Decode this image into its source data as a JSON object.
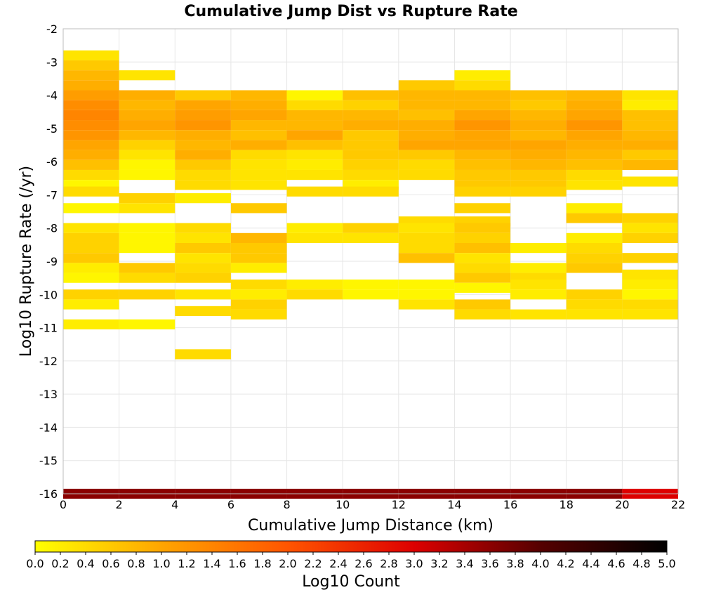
{
  "chart_data": {
    "type": "heatmap",
    "title": "Cumulative Jump Dist vs Rupture Rate",
    "xlabel": "Cumulative Jump Distance (km)",
    "ylabel": "Log10 Rupture Rate (/yr)",
    "xlim": [
      0,
      22
    ],
    "ylim": [
      -16,
      -2
    ],
    "x_ticks": [
      "0",
      "2",
      "4",
      "6",
      "8",
      "10",
      "12",
      "14",
      "16",
      "18",
      "20",
      "22"
    ],
    "y_ticks": [
      "-16",
      "-15",
      "-14",
      "-13",
      "-12",
      "-11",
      "-10",
      "-9",
      "-8",
      "-7",
      "-6",
      "-5",
      "-4",
      "-3",
      "-2"
    ],
    "grid": true,
    "x_bin_width": 2,
    "y_bin_height": 0.3,
    "colorbar": {
      "label": "Log10 Count",
      "min": 0.0,
      "max": 5.0,
      "ticks": [
        "0.0",
        "0.2",
        "0.4",
        "0.6",
        "0.8",
        "1.0",
        "1.2",
        "1.4",
        "1.6",
        "1.8",
        "2.0",
        "2.2",
        "2.4",
        "2.6",
        "2.8",
        "3.0",
        "3.2",
        "3.4",
        "3.6",
        "3.8",
        "4.0",
        "4.2",
        "4.4",
        "4.6",
        "4.8",
        "5.0"
      ],
      "colors": [
        "#ffff00",
        "#ffa500",
        "#ff5500",
        "#dd0000",
        "#550000",
        "#000000"
      ]
    },
    "columns": [
      {
        "x": 0,
        "cells": [
          [
            -2.8,
            0.3
          ],
          [
            -3.1,
            0.6
          ],
          [
            -3.4,
            0.8
          ],
          [
            -3.7,
            0.9
          ],
          [
            -4.0,
            1.1
          ],
          [
            -4.3,
            1.3
          ],
          [
            -4.6,
            1.4
          ],
          [
            -4.9,
            1.3
          ],
          [
            -5.2,
            1.2
          ],
          [
            -5.5,
            1.0
          ],
          [
            -5.8,
            0.9
          ],
          [
            -6.1,
            0.7
          ],
          [
            -6.4,
            0.4
          ],
          [
            -6.7,
            0.1
          ],
          [
            -6.9,
            0.4
          ],
          [
            -7.4,
            0.1
          ],
          [
            -8.0,
            0.3
          ],
          [
            -8.3,
            0.5
          ],
          [
            -8.6,
            0.5
          ],
          [
            -8.9,
            0.6
          ],
          [
            -9.2,
            0.2
          ],
          [
            -9.5,
            0.1
          ],
          [
            -10.0,
            0.5
          ],
          [
            -10.3,
            0.2
          ],
          [
            -10.9,
            0.2
          ],
          [
            -16.0,
            3.6
          ]
        ]
      },
      {
        "x": 2,
        "cells": [
          [
            -3.4,
            0.3
          ],
          [
            -4.0,
            0.9
          ],
          [
            -4.3,
            0.8
          ],
          [
            -4.6,
            0.9
          ],
          [
            -4.9,
            1.0
          ],
          [
            -5.2,
            0.8
          ],
          [
            -5.5,
            0.5
          ],
          [
            -5.8,
            0.3
          ],
          [
            -6.1,
            0.1
          ],
          [
            -6.4,
            0.1
          ],
          [
            -7.1,
            0.5
          ],
          [
            -7.4,
            0.3
          ],
          [
            -8.0,
            0.1
          ],
          [
            -8.3,
            0.1
          ],
          [
            -8.6,
            0.1
          ],
          [
            -9.2,
            0.6
          ],
          [
            -9.5,
            0.4
          ],
          [
            -10.0,
            0.5
          ],
          [
            -10.9,
            0.1
          ],
          [
            -16.0,
            3.6
          ]
        ]
      },
      {
        "x": 4,
        "cells": [
          [
            -4.0,
            0.6
          ],
          [
            -4.3,
            1.0
          ],
          [
            -4.6,
            1.1
          ],
          [
            -4.9,
            1.2
          ],
          [
            -5.2,
            0.9
          ],
          [
            -5.5,
            0.8
          ],
          [
            -5.8,
            0.9
          ],
          [
            -6.1,
            0.6
          ],
          [
            -6.4,
            0.4
          ],
          [
            -6.7,
            0.4
          ],
          [
            -7.1,
            0.2
          ],
          [
            -8.0,
            0.4
          ],
          [
            -8.3,
            0.3
          ],
          [
            -8.6,
            0.6
          ],
          [
            -8.9,
            0.3
          ],
          [
            -9.2,
            0.4
          ],
          [
            -9.5,
            0.5
          ],
          [
            -10.0,
            0.3
          ],
          [
            -10.5,
            0.4
          ],
          [
            -11.8,
            0.4
          ],
          [
            -16.0,
            3.6
          ]
        ]
      },
      {
        "x": 6,
        "cells": [
          [
            -4.0,
            0.8
          ],
          [
            -4.3,
            0.9
          ],
          [
            -4.6,
            1.0
          ],
          [
            -4.9,
            0.8
          ],
          [
            -5.2,
            0.7
          ],
          [
            -5.5,
            0.9
          ],
          [
            -5.8,
            0.4
          ],
          [
            -6.1,
            0.3
          ],
          [
            -6.4,
            0.3
          ],
          [
            -6.7,
            0.3
          ],
          [
            -7.4,
            0.6
          ],
          [
            -8.3,
            0.8
          ],
          [
            -8.6,
            0.6
          ],
          [
            -8.9,
            0.6
          ],
          [
            -9.2,
            0.2
          ],
          [
            -9.7,
            0.4
          ],
          [
            -10.0,
            0.2
          ],
          [
            -10.3,
            0.5
          ],
          [
            -10.6,
            0.4
          ],
          [
            -16.0,
            3.6
          ]
        ]
      },
      {
        "x": 8,
        "cells": [
          [
            -4.0,
            0.1
          ],
          [
            -4.3,
            0.4
          ],
          [
            -4.6,
            0.8
          ],
          [
            -4.9,
            0.8
          ],
          [
            -5.2,
            1.0
          ],
          [
            -5.5,
            0.7
          ],
          [
            -5.8,
            0.3
          ],
          [
            -6.1,
            0.2
          ],
          [
            -6.4,
            0.3
          ],
          [
            -6.9,
            0.4
          ],
          [
            -8.0,
            0.2
          ],
          [
            -8.3,
            0.3
          ],
          [
            -9.7,
            0.2
          ],
          [
            -10.0,
            0.4
          ],
          [
            -16.0,
            3.6
          ]
        ]
      },
      {
        "x": 10,
        "cells": [
          [
            -4.0,
            0.7
          ],
          [
            -4.3,
            0.5
          ],
          [
            -4.6,
            0.8
          ],
          [
            -4.9,
            0.9
          ],
          [
            -5.2,
            0.6
          ],
          [
            -5.5,
            0.6
          ],
          [
            -5.8,
            0.6
          ],
          [
            -6.1,
            0.5
          ],
          [
            -6.4,
            0.4
          ],
          [
            -6.7,
            0.2
          ],
          [
            -6.9,
            0.4
          ],
          [
            -8.0,
            0.5
          ],
          [
            -8.3,
            0.3
          ],
          [
            -9.7,
            0.1
          ],
          [
            -10.0,
            0.1
          ],
          [
            -16.0,
            3.6
          ]
        ]
      },
      {
        "x": 12,
        "cells": [
          [
            -3.7,
            0.6
          ],
          [
            -4.0,
            0.8
          ],
          [
            -4.3,
            0.8
          ],
          [
            -4.6,
            0.7
          ],
          [
            -4.9,
            0.9
          ],
          [
            -5.2,
            0.9
          ],
          [
            -5.5,
            1.0
          ],
          [
            -5.8,
            0.6
          ],
          [
            -6.1,
            0.4
          ],
          [
            -6.4,
            0.4
          ],
          [
            -7.8,
            0.4
          ],
          [
            -8.0,
            0.3
          ],
          [
            -8.3,
            0.4
          ],
          [
            -8.6,
            0.4
          ],
          [
            -8.9,
            0.7
          ],
          [
            -9.7,
            0.1
          ],
          [
            -10.0,
            0.1
          ],
          [
            -10.3,
            0.3
          ],
          [
            -16.0,
            3.6
          ]
        ]
      },
      {
        "x": 14,
        "cells": [
          [
            -3.4,
            0.2
          ],
          [
            -3.7,
            0.4
          ],
          [
            -4.0,
            0.8
          ],
          [
            -4.3,
            0.8
          ],
          [
            -4.6,
            1.0
          ],
          [
            -4.9,
            1.2
          ],
          [
            -5.2,
            1.0
          ],
          [
            -5.5,
            1.0
          ],
          [
            -5.8,
            0.8
          ],
          [
            -6.1,
            0.7
          ],
          [
            -6.4,
            0.6
          ],
          [
            -6.7,
            0.6
          ],
          [
            -6.9,
            0.5
          ],
          [
            -7.4,
            0.5
          ],
          [
            -7.8,
            0.5
          ],
          [
            -8.0,
            0.6
          ],
          [
            -8.3,
            0.5
          ],
          [
            -8.6,
            0.7
          ],
          [
            -8.9,
            0.3
          ],
          [
            -9.2,
            0.4
          ],
          [
            -9.5,
            0.6
          ],
          [
            -9.8,
            0.1
          ],
          [
            -10.3,
            0.6
          ],
          [
            -10.6,
            0.4
          ],
          [
            -16.0,
            3.6
          ]
        ]
      },
      {
        "x": 16,
        "cells": [
          [
            -4.0,
            0.7
          ],
          [
            -4.3,
            0.6
          ],
          [
            -4.6,
            0.8
          ],
          [
            -4.9,
            0.9
          ],
          [
            -5.2,
            0.8
          ],
          [
            -5.5,
            1.0
          ],
          [
            -5.8,
            0.9
          ],
          [
            -6.1,
            0.8
          ],
          [
            -6.4,
            0.6
          ],
          [
            -6.7,
            0.6
          ],
          [
            -6.9,
            0.5
          ],
          [
            -8.6,
            0.2
          ],
          [
            -9.2,
            0.2
          ],
          [
            -9.5,
            0.4
          ],
          [
            -9.7,
            0.3
          ],
          [
            -10.0,
            0.2
          ],
          [
            -10.6,
            0.3
          ],
          [
            -16.0,
            3.6
          ]
        ]
      },
      {
        "x": 18,
        "cells": [
          [
            -4.0,
            0.8
          ],
          [
            -4.3,
            0.9
          ],
          [
            -4.6,
            1.0
          ],
          [
            -4.9,
            1.2
          ],
          [
            -5.2,
            1.0
          ],
          [
            -5.5,
            0.9
          ],
          [
            -5.8,
            0.8
          ],
          [
            -6.1,
            0.7
          ],
          [
            -6.4,
            0.4
          ],
          [
            -6.7,
            0.3
          ],
          [
            -7.4,
            0.2
          ],
          [
            -7.7,
            0.6
          ],
          [
            -8.3,
            0.2
          ],
          [
            -8.6,
            0.4
          ],
          [
            -8.9,
            0.5
          ],
          [
            -9.2,
            0.6
          ],
          [
            -10.0,
            0.5
          ],
          [
            -10.3,
            0.4
          ],
          [
            -10.6,
            0.3
          ],
          [
            -16.0,
            3.6
          ]
        ]
      },
      {
        "x": 20,
        "cells": [
          [
            -4.0,
            0.3
          ],
          [
            -4.3,
            0.2
          ],
          [
            -4.6,
            0.7
          ],
          [
            -4.9,
            0.7
          ],
          [
            -5.2,
            0.8
          ],
          [
            -5.5,
            0.9
          ],
          [
            -5.8,
            0.6
          ],
          [
            -6.1,
            0.8
          ],
          [
            -6.6,
            0.3
          ],
          [
            -7.7,
            0.5
          ],
          [
            -8.0,
            0.3
          ],
          [
            -8.3,
            0.5
          ],
          [
            -8.9,
            0.5
          ],
          [
            -9.4,
            0.3
          ],
          [
            -9.7,
            0.2
          ],
          [
            -10.0,
            0.1
          ],
          [
            -10.3,
            0.4
          ],
          [
            -10.6,
            0.3
          ],
          [
            -16.0,
            3.0
          ]
        ]
      }
    ]
  }
}
